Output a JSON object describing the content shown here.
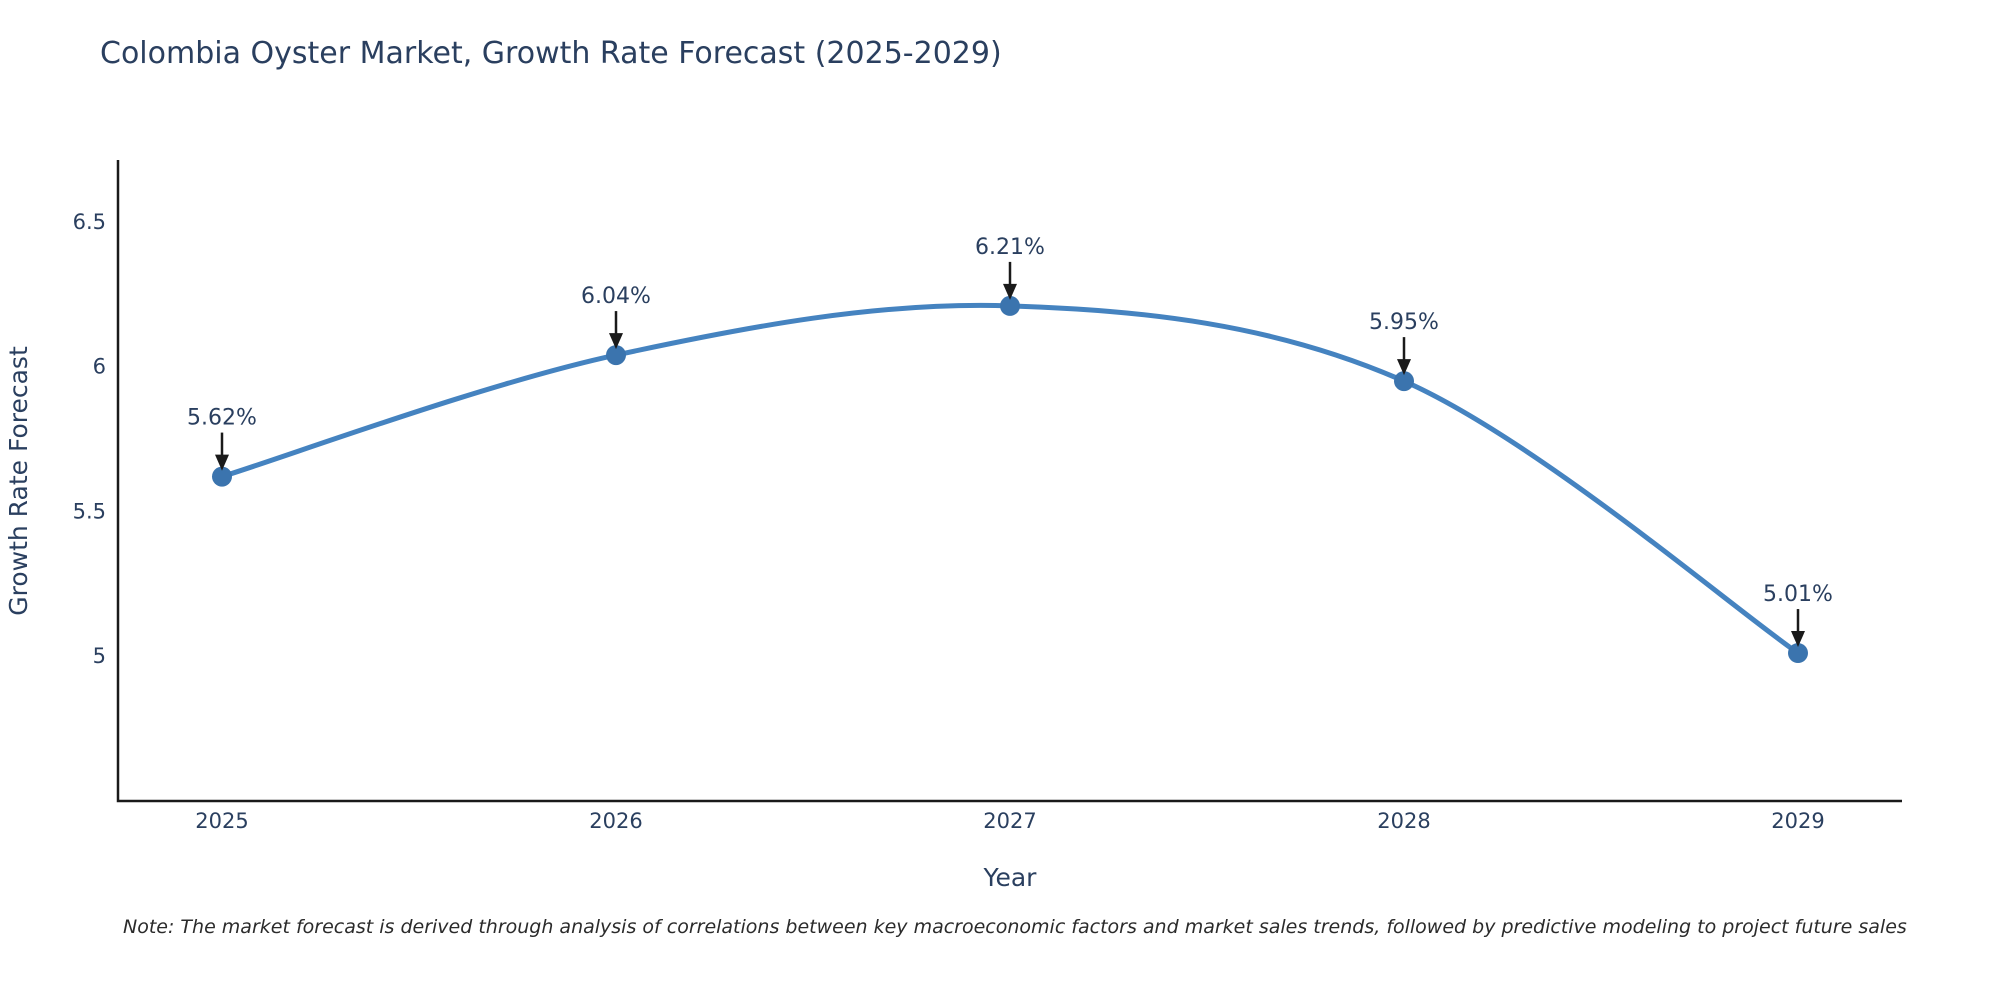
{
  "page": {
    "title": "Colombia Oyster Market, Growth Rate Forecast (2025-2029)",
    "note": "Note: The market forecast is derived through analysis of correlations between key macroeconomic factors and market sales trends, followed by predictive modeling to project future sales"
  },
  "chart_data": {
    "type": "line",
    "title": "Colombia Oyster Market, Growth Rate Forecast (2025-2029)",
    "x": [
      "2025",
      "2026",
      "2027",
      "2028",
      "2029"
    ],
    "series": [
      {
        "name": "Growth Rate Forecast",
        "values": [
          5.62,
          6.04,
          6.21,
          5.95,
          5.01
        ]
      }
    ],
    "point_labels": [
      "5.62%",
      "6.04%",
      "6.21%",
      "5.95%",
      "5.01%"
    ],
    "xlabel": "Year",
    "ylabel": "Growth Rate Forecast",
    "ytick_labels": [
      "5",
      "5.5",
      "6",
      "6.5"
    ],
    "ytick_values": [
      5,
      5.5,
      6,
      6.5
    ],
    "ylim": [
      4.5,
      6.73
    ],
    "grid": false,
    "legend_position": "none",
    "line_shape": "spline",
    "colors": {
      "line": "#4583c0",
      "marker": "#3b74ae",
      "arrow": "#1a1a1a",
      "axis": "#1a1a1a",
      "text": "#2a3f5f"
    }
  }
}
